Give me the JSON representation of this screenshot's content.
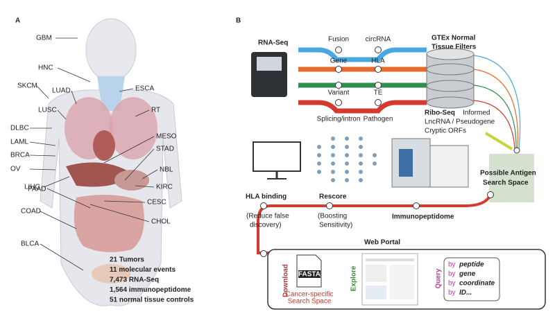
{
  "panel_a": {
    "label": "A",
    "organ_labels": [
      "GBM",
      "HNC",
      "SKCM",
      "LUAD",
      "ESCA",
      "LUSC",
      "RT",
      "DLBC",
      "LAML",
      "BRCA",
      "OV",
      "LIHC",
      "PAAD",
      "COAD",
      "BLCA",
      "MESO",
      "STAD",
      "NBL",
      "KIRC",
      "CESC",
      "CHOL"
    ],
    "stats": [
      "21 Tumors",
      "11 molecular events",
      "7,473 RNA-Seq",
      "1,564 immunopeptidome",
      "51 normal tissue controls"
    ]
  },
  "panel_b": {
    "label": "B",
    "rna_seq": "RNA-Seq",
    "pipeline_labels": [
      "Fusion",
      "circRNA",
      "Gene",
      "HLA",
      "Variant",
      "TE",
      "Splicing/intron",
      "Pathogen"
    ],
    "gtex": [
      "GTEx Normal",
      "Tissue Filters"
    ],
    "ribo": {
      "bold": "Ribo-Seq",
      "rest": "Informed",
      "lines": [
        "LncRNA / Pseudogene",
        "Cryptic ORFs"
      ]
    },
    "search_space": [
      "Possible Antigen",
      "Search Space"
    ],
    "steps": [
      {
        "title": "HLA binding",
        "note": [
          "(Reduce false",
          "discovery)"
        ]
      },
      {
        "title": "Rescore",
        "note": [
          "(Boosting",
          "Sensitivity)"
        ]
      },
      {
        "title": "Immunopeptidome",
        "note": []
      }
    ],
    "portal": {
      "title": "Web Portal",
      "download": "Download",
      "fasta": "FASTA",
      "download_note": [
        "Cancer-specific",
        "Search Space"
      ],
      "explore": "Explore",
      "query": "Query",
      "query_items": [
        {
          "by": "by",
          "what": "peptide"
        },
        {
          "by": "by",
          "what": "gene"
        },
        {
          "by": "by",
          "what": "coordinate"
        },
        {
          "by": "by",
          "what": "ID..."
        }
      ]
    }
  }
}
